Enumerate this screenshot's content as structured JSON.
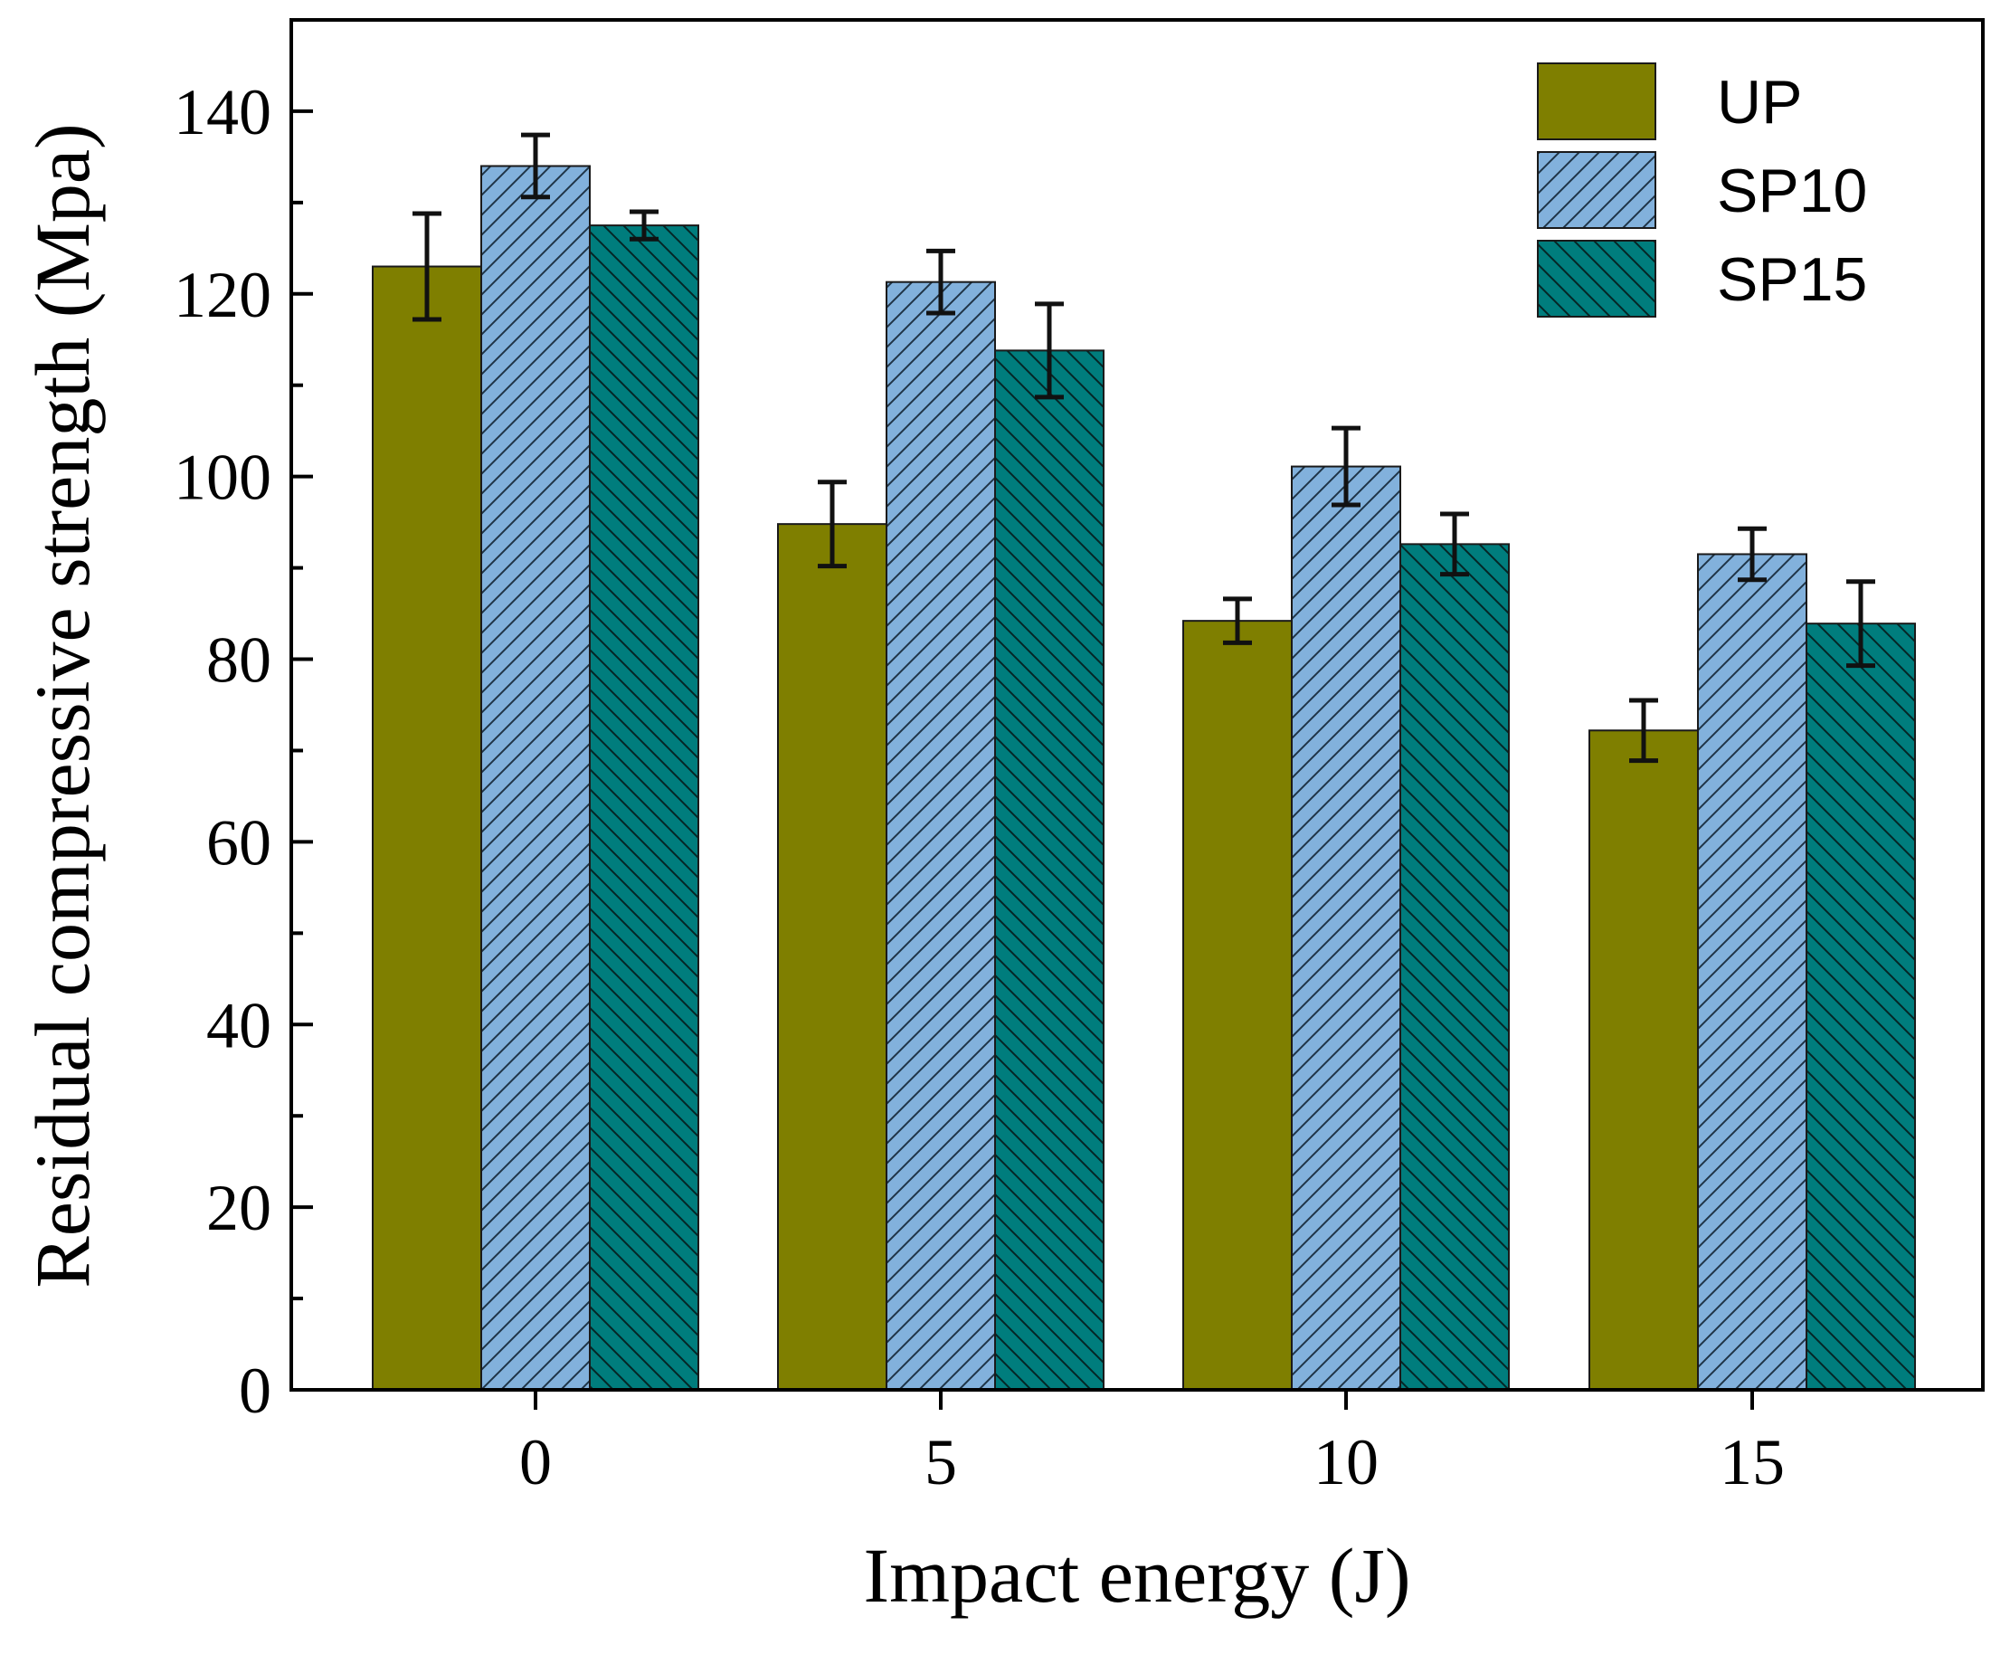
{
  "chart_data": {
    "type": "bar",
    "xlabel": "Impact energy (J)",
    "ylabel": "Residual compressive strength (Mpa)",
    "categories": [
      "0",
      "5",
      "10",
      "15"
    ],
    "ylim": [
      0,
      150
    ],
    "yticks": [
      0,
      20,
      40,
      60,
      80,
      100,
      120,
      140
    ],
    "grid": false,
    "legend_position": "top-right",
    "series": [
      {
        "name": "UP",
        "color": "#7f7f00",
        "pattern": "solid",
        "values": [
          123.0,
          94.8,
          84.2,
          72.2
        ],
        "errors": [
          5.8,
          4.6,
          2.4,
          3.3
        ]
      },
      {
        "name": "SP10",
        "color": "#82b1dc",
        "pattern": "forward-hatch",
        "values": [
          134.0,
          121.3,
          101.1,
          91.5
        ],
        "errors": [
          3.4,
          3.4,
          4.2,
          2.8
        ]
      },
      {
        "name": "SP15",
        "color": "#007d7d",
        "pattern": "back-hatch",
        "values": [
          127.5,
          113.8,
          92.6,
          83.9
        ],
        "errors": [
          1.5,
          5.1,
          3.3,
          4.6
        ]
      }
    ]
  }
}
